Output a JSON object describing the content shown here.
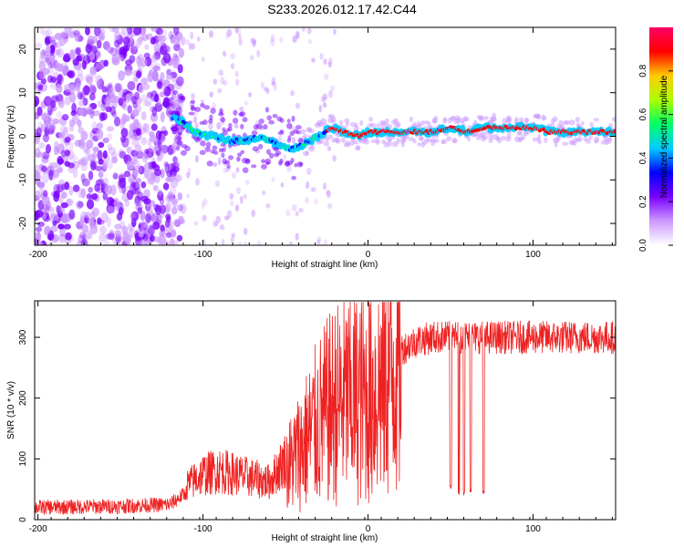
{
  "title": "S233.2026.012.17.42.C44",
  "chart_data": [
    {
      "type": "heatmap",
      "xlabel": "Height of straight line (km)",
      "ylabel": "Frequency (Hz)",
      "xlim": [
        -202,
        150
      ],
      "ylim": [
        -25,
        25
      ],
      "xticks": [
        -200,
        -100,
        0,
        100
      ],
      "yticks": [
        -20,
        -10,
        0,
        10,
        20
      ],
      "colorbar": {
        "label": "Normalized spectral amplitude",
        "range": [
          0,
          1
        ],
        "ticks": [
          0.0,
          0.2,
          0.4,
          0.6,
          0.8
        ],
        "colors": [
          "#ffffff",
          "#cc99ff",
          "#7a00ff",
          "#0000ff",
          "#00ccff",
          "#00ff66",
          "#aaff00",
          "#ffcc00",
          "#ff0000",
          "#ff0066"
        ]
      },
      "ridge": {
        "x": [
          -115,
          -105,
          -95,
          -85,
          -75,
          -65,
          -55,
          -48,
          -40,
          -30,
          -22,
          -15,
          -5,
          0,
          10,
          20,
          30,
          40,
          50,
          60,
          70,
          80,
          90,
          100,
          110,
          120,
          130,
          140,
          150
        ],
        "y": [
          4,
          1,
          0,
          -1,
          -1,
          0,
          -2,
          -3,
          -2,
          0,
          2,
          1,
          0,
          1,
          1,
          1,
          1,
          1,
          2,
          1,
          2,
          2,
          2,
          2,
          1,
          1,
          1,
          1,
          1
        ]
      }
    },
    {
      "type": "line",
      "xlabel": "Height of straight line (km)",
      "ylabel": "SNR (10 * v/v)",
      "xlim": [
        -202,
        150
      ],
      "ylim": [
        0,
        360
      ],
      "xticks": [
        -200,
        -100,
        0,
        100
      ],
      "yticks": [
        0,
        100,
        200,
        300
      ],
      "color": "#ee2222",
      "envelope": {
        "x": [
          -202,
          -150,
          -120,
          -110,
          -100,
          -90,
          -80,
          -70,
          -60,
          -50,
          -40,
          -30,
          -20,
          -10,
          0,
          10,
          20,
          30,
          40,
          50,
          60,
          70,
          80,
          100,
          120,
          150
        ],
        "y": [
          20,
          22,
          25,
          45,
          60,
          65,
          60,
          55,
          50,
          80,
          120,
          160,
          190,
          200,
          200,
          230,
          280,
          295,
          300,
          300,
          300,
          300,
          300,
          300,
          300,
          300
        ]
      },
      "dips": [
        {
          "x": 50,
          "y": 50
        },
        {
          "x": 55,
          "y": 40
        },
        {
          "x": 58,
          "y": 40
        },
        {
          "x": 62,
          "y": 45
        },
        {
          "x": 70,
          "y": 40
        }
      ]
    }
  ]
}
